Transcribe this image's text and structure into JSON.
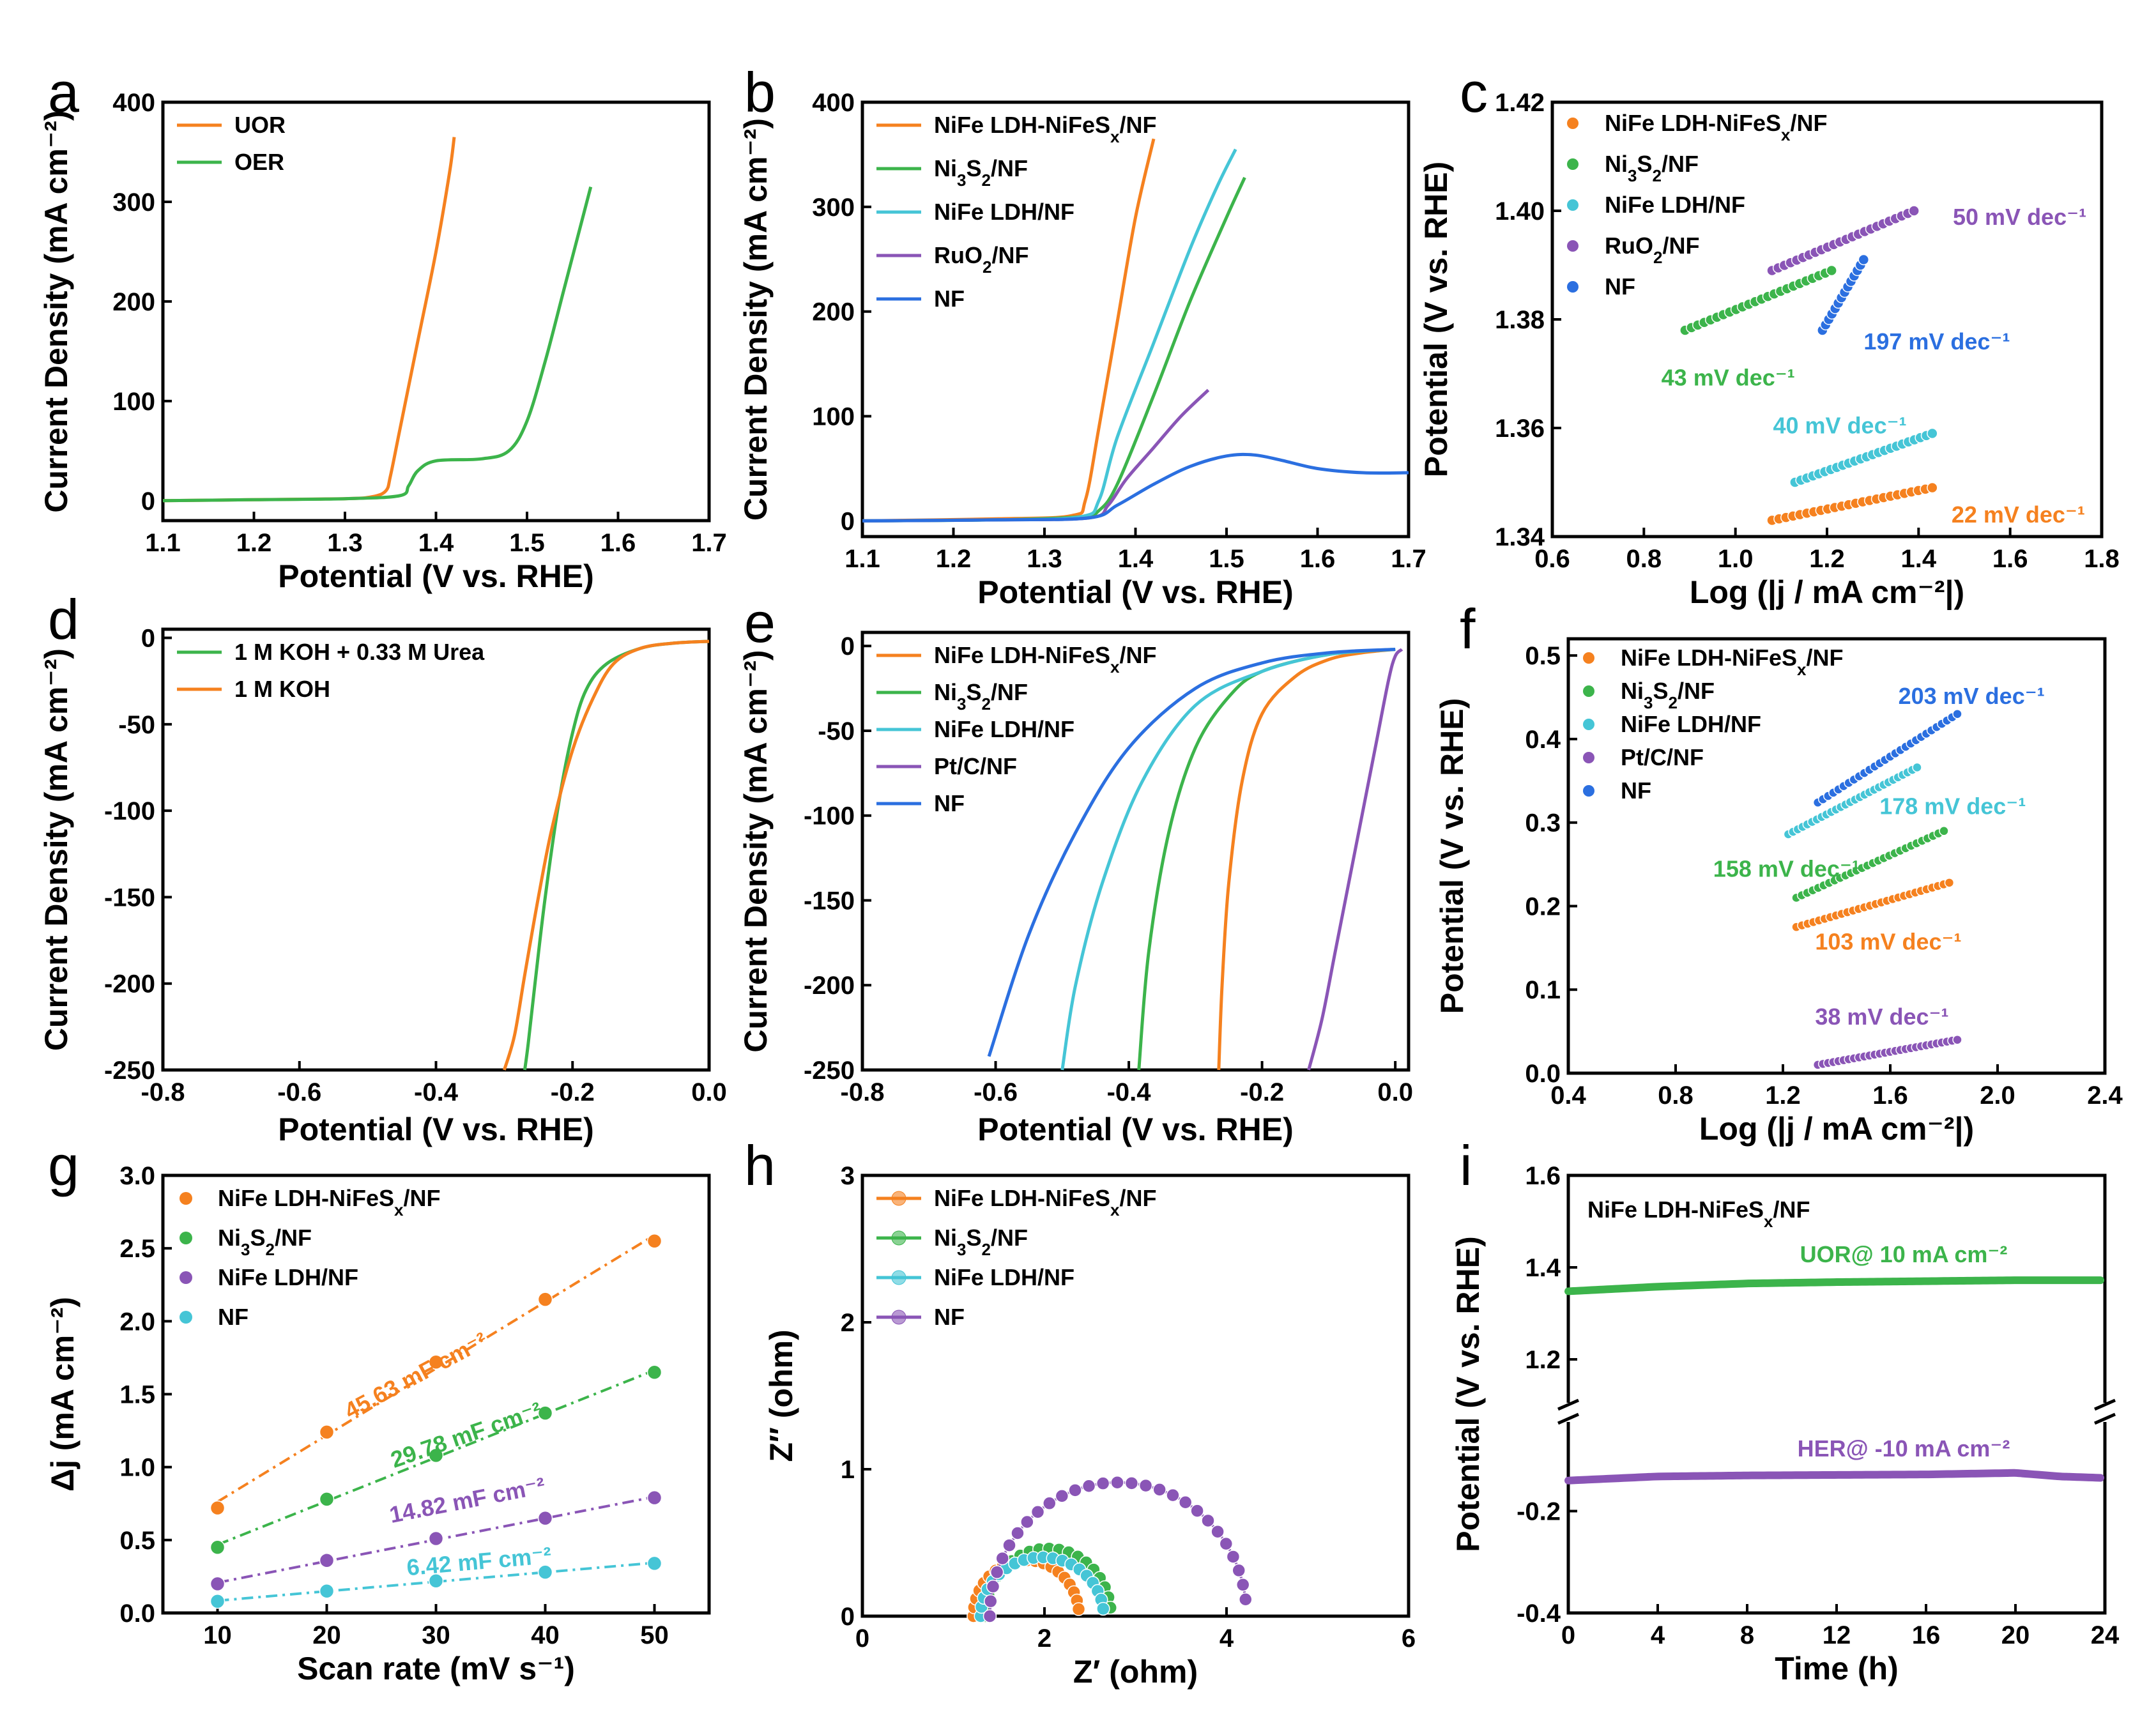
{
  "colors": {
    "orange": "#f5811f",
    "green": "#3cb44b",
    "cyan": "#45c5d6",
    "purple": "#8a55b6",
    "blue": "#2b6fe0"
  },
  "chart_data": [
    {
      "id": "a",
      "type": "line",
      "label": "a",
      "xlabel": "Potential (V vs. RHE)",
      "ylabel": "Current Density (mA cm⁻²)",
      "xlim": [
        1.1,
        1.7
      ],
      "ylim": [
        -20,
        400
      ],
      "xticks": [
        1.1,
        1.2,
        1.3,
        1.4,
        1.5,
        1.6,
        1.7
      ],
      "yticks": [
        0,
        100,
        200,
        300,
        400
      ],
      "tickDecimals": [
        1,
        0
      ],
      "legend": "top-left",
      "series": [
        {
          "name": "UOR",
          "color": "orange",
          "x": [
            1.1,
            1.2,
            1.3,
            1.33,
            1.345,
            1.35,
            1.36,
            1.38,
            1.4,
            1.415,
            1.42
          ],
          "y": [
            0,
            1,
            2,
            4,
            10,
            25,
            70,
            160,
            250,
            330,
            365
          ]
        },
        {
          "name": "OER",
          "color": "green",
          "x": [
            1.1,
            1.2,
            1.3,
            1.36,
            1.37,
            1.38,
            1.4,
            1.45,
            1.48,
            1.5,
            1.52,
            1.54,
            1.56,
            1.57
          ],
          "y": [
            0,
            1,
            2,
            5,
            15,
            30,
            40,
            42,
            50,
            80,
            140,
            210,
            280,
            315
          ]
        }
      ]
    },
    {
      "id": "b",
      "type": "line",
      "label": "b",
      "xlabel": "Potential (V vs. RHE)",
      "ylabel": "Current Density (mA cm⁻²)",
      "xlim": [
        1.1,
        1.7
      ],
      "ylim": [
        -15,
        400
      ],
      "xticks": [
        1.1,
        1.2,
        1.3,
        1.4,
        1.5,
        1.6,
        1.7
      ],
      "yticks": [
        0,
        100,
        200,
        300,
        400
      ],
      "tickDecimals": [
        1,
        0
      ],
      "legend": "top-left",
      "series": [
        {
          "name": "NiFe LDH-NiFeS",
          "sub": "x",
          "tail": "/NF",
          "color": "orange",
          "x": [
            1.1,
            1.25,
            1.33,
            1.345,
            1.36,
            1.38,
            1.4,
            1.42
          ],
          "y": [
            0,
            2,
            5,
            20,
            90,
            190,
            290,
            365
          ]
        },
        {
          "name": "Ni",
          "sub": "3",
          "mid": "S",
          "sub2": "2",
          "tail": "/NF",
          "color": "green",
          "x": [
            1.1,
            1.25,
            1.34,
            1.36,
            1.38,
            1.42,
            1.46,
            1.5,
            1.52
          ],
          "y": [
            0,
            1,
            4,
            10,
            35,
            120,
            210,
            290,
            328
          ]
        },
        {
          "name": "NiFe LDH/NF",
          "color": "cyan",
          "x": [
            1.1,
            1.25,
            1.34,
            1.36,
            1.38,
            1.42,
            1.46,
            1.49,
            1.51
          ],
          "y": [
            0,
            1,
            4,
            20,
            80,
            170,
            260,
            320,
            355
          ]
        },
        {
          "name": "RuO",
          "sub": "2",
          "tail": "/NF",
          "color": "purple",
          "x": [
            1.1,
            1.25,
            1.35,
            1.37,
            1.39,
            1.42,
            1.45,
            1.48
          ],
          "y": [
            0,
            1,
            3,
            15,
            40,
            70,
            100,
            125
          ]
        },
        {
          "name": "NF",
          "color": "blue",
          "x": [
            1.1,
            1.25,
            1.35,
            1.38,
            1.42,
            1.46,
            1.5,
            1.53,
            1.56,
            1.6,
            1.65,
            1.7
          ],
          "y": [
            0,
            1,
            3,
            15,
            35,
            52,
            62,
            63,
            58,
            50,
            46,
            46
          ]
        }
      ]
    },
    {
      "id": "c",
      "type": "scatter",
      "label": "c",
      "xlabel": "Log (|j / mA cm⁻²|)",
      "ylabel": "Potential (V vs. RHE)",
      "xlim": [
        0.6,
        1.8
      ],
      "ylim": [
        1.34,
        1.42
      ],
      "xticks": [
        0.6,
        0.8,
        1.0,
        1.2,
        1.4,
        1.6,
        1.8
      ],
      "yticks": [
        1.34,
        1.36,
        1.38,
        1.4,
        1.42
      ],
      "tickDecimals": [
        1,
        2
      ],
      "legend": "top-left",
      "series": [
        {
          "name": "NiFe LDH-NiFeS",
          "sub": "x",
          "tail": "/NF",
          "color": "orange",
          "x0": 1.08,
          "x1": 1.43,
          "y0": 1.343,
          "y1": 1.349,
          "n": 24,
          "slope": "22 mV dec⁻¹"
        },
        {
          "name": "Ni",
          "sub": "3",
          "mid": "S",
          "sub2": "2",
          "tail": "/NF",
          "color": "green",
          "x0": 0.89,
          "x1": 1.21,
          "y0": 1.378,
          "y1": 1.389,
          "n": 24,
          "slope": "43 mV dec⁻¹"
        },
        {
          "name": "NiFe LDH/NF",
          "color": "cyan",
          "x0": 1.13,
          "x1": 1.43,
          "y0": 1.35,
          "y1": 1.359,
          "n": 24,
          "slope": "40 mV dec⁻¹"
        },
        {
          "name": "RuO",
          "sub": "2",
          "tail": "/NF",
          "color": "purple",
          "x0": 1.08,
          "x1": 1.39,
          "y0": 1.389,
          "y1": 1.4,
          "n": 24,
          "slope": "50 mV dec⁻¹"
        },
        {
          "name": "NF",
          "color": "blue",
          "x0": 1.19,
          "x1": 1.28,
          "y0": 1.378,
          "y1": 1.391,
          "n": 14,
          "slope": "197 mV dec⁻¹"
        }
      ]
    },
    {
      "id": "d",
      "type": "line",
      "label": "d",
      "xlabel": "Potential (V vs. RHE)",
      "ylabel": "Current Density (mA cm⁻²)",
      "xlim": [
        -0.8,
        0.0
      ],
      "ylim": [
        -250,
        5
      ],
      "xticks": [
        -0.8,
        -0.6,
        -0.4,
        -0.2,
        0.0
      ],
      "yticks": [
        0,
        -50,
        -100,
        -150,
        -200,
        -250
      ],
      "tickDecimals": [
        1,
        0
      ],
      "legend": "top-left",
      "series": [
        {
          "name": "1 M KOH + 0.33 M Urea",
          "color": "green",
          "x": [
            0.0,
            -0.05,
            -0.1,
            -0.15,
            -0.18,
            -0.2,
            -0.22,
            -0.24,
            -0.255,
            -0.265,
            -0.27
          ],
          "y": [
            -2,
            -3,
            -6,
            -15,
            -30,
            -55,
            -95,
            -150,
            -200,
            -235,
            -250
          ]
        },
        {
          "name": "1 M KOH",
          "color": "orange",
          "x": [
            0.0,
            -0.05,
            -0.1,
            -0.14,
            -0.17,
            -0.2,
            -0.23,
            -0.25,
            -0.27,
            -0.285,
            -0.3
          ],
          "y": [
            -2,
            -3,
            -6,
            -15,
            -35,
            -65,
            -110,
            -150,
            -195,
            -230,
            -250
          ]
        }
      ]
    },
    {
      "id": "e",
      "type": "line",
      "label": "e",
      "xlabel": "Potential (V vs. RHE)",
      "ylabel": "Current Density (mA cm⁻²)",
      "xlim": [
        -0.8,
        0.02
      ],
      "ylim": [
        -250,
        8
      ],
      "xticks": [
        -0.8,
        -0.6,
        -0.4,
        -0.2,
        0.0
      ],
      "yticks": [
        0,
        -50,
        -100,
        -150,
        -200,
        -250
      ],
      "tickDecimals": [
        1,
        0
      ],
      "legend": "top-left",
      "series": [
        {
          "name": "NiFe LDH-NiFeS",
          "sub": "x",
          "tail": "/NF",
          "color": "orange",
          "x": [
            0.0,
            -0.05,
            -0.1,
            -0.15,
            -0.2,
            -0.23,
            -0.25,
            -0.26,
            -0.265
          ],
          "y": [
            -2,
            -4,
            -8,
            -18,
            -40,
            -80,
            -140,
            -200,
            -250
          ]
        },
        {
          "name": "Ni",
          "sub": "3",
          "mid": "S",
          "sub2": "2",
          "tail": "/NF",
          "color": "green",
          "x": [
            0.0,
            -0.1,
            -0.2,
            -0.25,
            -0.3,
            -0.34,
            -0.37,
            -0.385
          ],
          "y": [
            -2,
            -5,
            -15,
            -30,
            -60,
            -110,
            -180,
            -250
          ]
        },
        {
          "name": "NiFe LDH/NF",
          "color": "cyan",
          "x": [
            0.0,
            -0.1,
            -0.2,
            -0.3,
            -0.38,
            -0.44,
            -0.48,
            -0.5
          ],
          "y": [
            -2,
            -5,
            -15,
            -35,
            -80,
            -140,
            -200,
            -250
          ]
        },
        {
          "name": "Pt/C/NF",
          "color": "purple",
          "x": [
            0.01,
            0.0,
            -0.01,
            -0.03,
            -0.06,
            -0.09,
            -0.11,
            -0.13
          ],
          "y": [
            -2,
            -6,
            -20,
            -60,
            -120,
            -180,
            -220,
            -250
          ]
        },
        {
          "name": "NF",
          "color": "blue",
          "x": [
            0.0,
            -0.1,
            -0.2,
            -0.3,
            -0.4,
            -0.48,
            -0.55,
            -0.61
          ],
          "y": [
            -2,
            -4,
            -10,
            -25,
            -60,
            -110,
            -170,
            -242
          ]
        }
      ]
    },
    {
      "id": "f",
      "type": "scatter",
      "label": "f",
      "xlabel": "Log (|j / mA cm⁻²|)",
      "ylabel": "Potential (V vs. RHE)",
      "xlim": [
        0.4,
        2.4
      ],
      "ylim": [
        0.0,
        0.52
      ],
      "xticks": [
        0.4,
        0.8,
        1.2,
        1.6,
        2.0,
        2.4
      ],
      "yticks": [
        0.0,
        0.1,
        0.2,
        0.3,
        0.4,
        0.5
      ],
      "tickDecimals": [
        1,
        1
      ],
      "legend": "top-left",
      "series": [
        {
          "name": "NiFe LDH-NiFeS",
          "sub": "x",
          "tail": "/NF",
          "color": "orange",
          "x0": 1.25,
          "x1": 1.82,
          "y0": 0.175,
          "y1": 0.228,
          "n": 28,
          "slope": "103 mV dec⁻¹"
        },
        {
          "name": "Ni",
          "sub": "3",
          "mid": "S",
          "sub2": "2",
          "tail": "/NF",
          "color": "green",
          "x0": 1.25,
          "x1": 1.8,
          "y0": 0.21,
          "y1": 0.29,
          "n": 28,
          "slope": "158 mV dec⁻¹"
        },
        {
          "name": "NiFe LDH/NF",
          "color": "cyan",
          "x0": 1.22,
          "x1": 1.7,
          "y0": 0.286,
          "y1": 0.366,
          "n": 28,
          "slope": "178 mV dec⁻¹"
        },
        {
          "name": "Pt/C/NF",
          "color": "purple",
          "x0": 1.33,
          "x1": 1.85,
          "y0": 0.01,
          "y1": 0.04,
          "n": 28,
          "slope": "38 mV dec⁻¹"
        },
        {
          "name": "NF",
          "color": "blue",
          "x0": 1.33,
          "x1": 1.85,
          "y0": 0.324,
          "y1": 0.43,
          "n": 28,
          "slope": "203 mV dec⁻¹"
        }
      ]
    },
    {
      "id": "g",
      "type": "scatter",
      "label": "g",
      "xlabel": "Scan rate (mV s⁻¹)",
      "ylabel": "Δj (mA cm⁻²)",
      "xlim": [
        5,
        55
      ],
      "ylim": [
        0.0,
        3.0
      ],
      "xticks": [
        10,
        20,
        30,
        40,
        50
      ],
      "yticks": [
        0.0,
        0.5,
        1.0,
        1.5,
        2.0,
        2.5,
        3.0
      ],
      "tickDecimals": [
        0,
        1
      ],
      "legend": "top-left",
      "series": [
        {
          "name": "NiFe LDH-NiFeS",
          "sub": "x",
          "tail": "/NF",
          "color": "orange",
          "x": [
            10,
            20,
            30,
            40,
            50
          ],
          "y": [
            0.72,
            1.24,
            1.72,
            2.15,
            2.55
          ],
          "slope": "45.63 mF cm⁻²"
        },
        {
          "name": "Ni",
          "sub": "3",
          "mid": "S",
          "sub2": "2",
          "tail": "/NF",
          "color": "green",
          "x": [
            10,
            20,
            30,
            40,
            50
          ],
          "y": [
            0.45,
            0.78,
            1.08,
            1.37,
            1.65
          ],
          "slope": "29.78 mF cm⁻²"
        },
        {
          "name": "NiFe LDH/NF",
          "color": "purple",
          "x": [
            10,
            20,
            30,
            40,
            50
          ],
          "y": [
            0.2,
            0.36,
            0.51,
            0.65,
            0.79
          ],
          "slope": "14.82 mF cm⁻²"
        },
        {
          "name": "NF",
          "color": "cyan",
          "x": [
            10,
            20,
            30,
            40,
            50
          ],
          "y": [
            0.08,
            0.15,
            0.22,
            0.28,
            0.34
          ],
          "slope": "6.42 mF cm⁻²"
        }
      ]
    },
    {
      "id": "h",
      "type": "line",
      "label": "h",
      "xlabel": "Z′ (ohm)",
      "ylabel": "Z′′ (ohm)",
      "xlim": [
        0,
        6
      ],
      "ylim": [
        0,
        3
      ],
      "xticks": [
        0,
        2,
        4,
        6
      ],
      "yticks": [
        0,
        1,
        2,
        3
      ],
      "tickDecimals": [
        0,
        0
      ],
      "legend": "top-left",
      "series": [
        {
          "name": "NiFe LDH-NiFeS",
          "sub": "x",
          "tail": "/NF",
          "color": "orange",
          "arc": [
            1.22,
            2.38,
            0.38
          ],
          "n": 20
        },
        {
          "name": "Ni",
          "sub": "3",
          "mid": "S",
          "sub2": "2",
          "tail": "/NF",
          "color": "green",
          "arc": [
            1.35,
            2.73,
            0.46
          ],
          "n": 20
        },
        {
          "name": "NiFe LDH/NF",
          "color": "cyan",
          "arc": [
            1.3,
            2.65,
            0.4
          ],
          "n": 20
        },
        {
          "name": "NF",
          "color": "purple",
          "arc": [
            1.4,
            4.22,
            0.91
          ],
          "n": 28
        }
      ]
    },
    {
      "id": "i",
      "type": "line",
      "label": "i",
      "xlabel": "Time (h)",
      "ylabel": "Potential (V vs. RHE)",
      "xlim": [
        0,
        24
      ],
      "xticks": [
        0,
        4,
        8,
        12,
        16,
        20,
        24
      ],
      "yticks": [
        1.6,
        1.4,
        1.2,
        -0.2,
        -0.4
      ],
      "title": "NiFe LDH-NiFeS",
      "title_sub": "x",
      "title_tail": "/NF",
      "series": [
        {
          "name": "UOR@ 10 mA cm⁻²",
          "color": "green",
          "x": [
            0,
            4,
            8,
            12,
            16,
            20,
            24
          ],
          "y": [
            1.348,
            1.358,
            1.365,
            1.368,
            1.37,
            1.372,
            1.372
          ]
        },
        {
          "name": "HER@ -10 mA cm⁻²",
          "color": "purple",
          "x": [
            0,
            4,
            8,
            12,
            16,
            20,
            22,
            24
          ],
          "y": [
            -0.14,
            -0.132,
            -0.13,
            -0.129,
            -0.128,
            -0.125,
            -0.132,
            -0.135
          ]
        }
      ]
    }
  ]
}
